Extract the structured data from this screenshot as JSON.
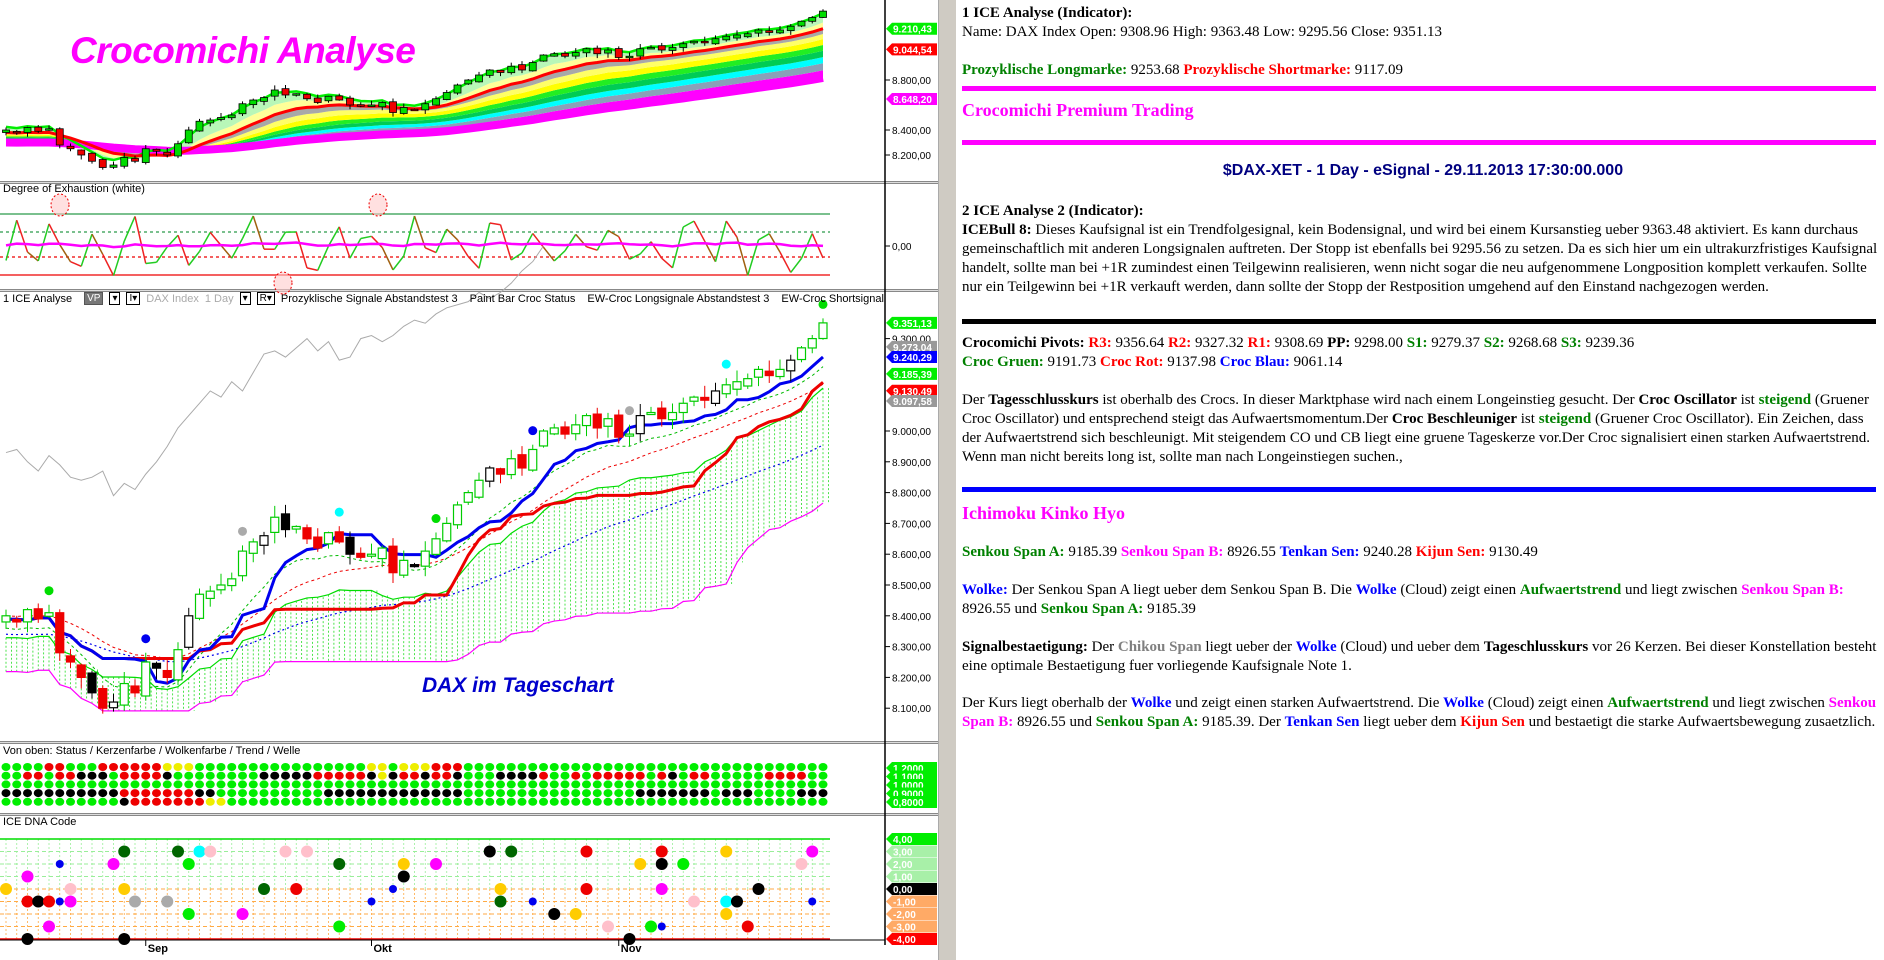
{
  "chart": {
    "top": {
      "title": "Crocomichi Analyse",
      "axis": [
        "8.800,00",
        "8.400,00",
        "8.200,00"
      ],
      "flags": [
        {
          "v": "9.210,43",
          "c": "#00ee00"
        },
        {
          "v": "9.044,54",
          "c": "#ff0000"
        },
        {
          "v": "8.648,20",
          "c": "#ff00ff"
        }
      ]
    },
    "doe": {
      "title": "Degree of Exhaustion (white)",
      "axis": [
        "0,00"
      ]
    },
    "main": {
      "header": {
        "name": "1 ICE Analyse",
        "vp": "VP",
        "i_box": "I▾",
        "symbol": "DAX Index",
        "interval": "1 Day",
        "r_box": "R▾",
        "dropdown": "▾",
        "studies": [
          "Prozyklische Signale Abstandstest 3",
          "Paint Bar Croc Status",
          "EW-Croc Longsignale Abstandstest 3",
          "EW-Croc Shortsignal"
        ]
      },
      "watermark": "DAX im Tageschart",
      "axis": [
        "9.300,00",
        "9.000,00",
        "8.900,00",
        "8.800,00",
        "8.700,00",
        "8.600,00",
        "8.500,00",
        "8.400,00",
        "8.300,00",
        "8.200,00",
        "8.100,00"
      ],
      "flags": [
        {
          "v": "9.351,13",
          "c": "#00ee00"
        },
        {
          "v": "9.273,04",
          "c": "#999999"
        },
        {
          "v": "9.240,29",
          "c": "#0000ff"
        },
        {
          "v": "9.185,39",
          "c": "#00ee00"
        },
        {
          "v": "9.130,49",
          "c": "#ff0000"
        },
        {
          "v": "9.097,58",
          "c": "#999999"
        }
      ]
    },
    "status": {
      "title": "Von oben: Status / Kerzenfarbe / Wolkenfarbe / Trend / Welle",
      "rows": [
        "ggggrrgggrrrrrryyyggggggggggggggggyygyyyrrrggggggggggggggggggggggggggggggggggg",
        "ggrrgrrkkkgrrrrkggggggggkkkkkrrrrrkykrrkrrkgggkkkkrggrgrrrrrgrkgrrgggggrrrrgg",
        "ggggggggggggggggggggggggggggggggggggggggggggggggggggggggggggggggggggggggggggg",
        "kkkkkkkkkkkrrrrrrrkkggggggggggkkkkkkkkkkkkkggggggggggggggggkkkkkkkgkkkggggkkkg",
        "gggggggggggkrrrrrrryygggggggggggggggggggggggggggggggggggggggggggggggggggggggg"
      ],
      "flags": [
        "1,2000",
        "1,1000",
        "1,0000",
        "0,9000",
        "0,8000"
      ]
    },
    "dna": {
      "title": "ICE DNA Code",
      "flags": [
        {
          "v": "4,00",
          "c": "#00ee00"
        },
        {
          "v": "3,00",
          "c": "#a8f0a8"
        },
        {
          "v": "2,00",
          "c": "#a8f0a8"
        },
        {
          "v": "1,00",
          "c": "#a8f0a8"
        },
        {
          "v": "0,00",
          "c": "#000000"
        },
        {
          "v": "-1,00",
          "c": "#ffaa66"
        },
        {
          "v": "-2,00",
          "c": "#ffaa66"
        },
        {
          "v": "-3,00",
          "c": "#ffaa66"
        },
        {
          "v": "-4,00",
          "c": "#ff0000"
        }
      ]
    },
    "months": [
      {
        "label": "Sep",
        "bar": 13
      },
      {
        "label": "Okt",
        "bar": 34
      },
      {
        "label": "Nov",
        "bar": 57
      }
    ],
    "closes": [
      8400,
      8380,
      8420,
      8390,
      8410,
      8280,
      8250,
      8200,
      8150,
      8100,
      8120,
      8180,
      8150,
      8250,
      8230,
      8200,
      8290,
      8400,
      8470,
      8480,
      8500,
      8520,
      8610,
      8640,
      8660,
      8720,
      8680,
      8690,
      8650,
      8620,
      8670,
      8640,
      8600,
      8590,
      8600,
      8620,
      8540,
      8580,
      8560,
      8610,
      8650,
      8700,
      8760,
      8800,
      8840,
      8880,
      8860,
      8910,
      8880,
      8940,
      9000,
      9010,
      8990,
      9020,
      9050,
      9010,
      9040,
      8980,
      8990,
      9050,
      9060,
      9040,
      9060,
      9090,
      9110,
      9100,
      9130,
      9150,
      9160,
      9170,
      9200,
      9180,
      9200,
      9230,
      9270,
      9300,
      9351
    ]
  },
  "text_panel": {
    "blocks": [
      {
        "type": "p",
        "segs": [
          {
            "t": "1 ICE Analyse (Indicator):",
            "s": "b"
          },
          {
            "br": true
          },
          {
            "t": "Name: DAX Index Open: 9308.96 High: 9363.48 Low: 9295.56 Close: 9351.13",
            "s": ""
          }
        ]
      },
      {
        "type": "p",
        "segs": [
          {
            "t": "Prozyklische Longmarke:",
            "s": "g"
          },
          {
            "t": " 9253.68 ",
            "s": ""
          },
          {
            "t": "Prozyklische Shortmarke:",
            "s": "r"
          },
          {
            "t": " 9117.09",
            "s": ""
          }
        ]
      },
      {
        "type": "hr",
        "color": "#ff00ff"
      },
      {
        "type": "h",
        "segs": [
          {
            "t": "Crocomichi Premium Trading",
            "s": ""
          }
        ]
      },
      {
        "type": "hr",
        "color": "#ff00ff"
      },
      {
        "type": "c",
        "segs": [
          {
            "t": "$DAX-XET - 1 Day - eSignal - 29.11.2013 17:30:00.000",
            "s": ""
          }
        ]
      },
      {
        "type": "p",
        "segs": [
          {
            "t": "2 ICE Analyse 2 (Indicator):",
            "s": "b"
          },
          {
            "br": true
          },
          {
            "t": "ICEBull 8:",
            "s": "b"
          },
          {
            "t": " Dieses Kaufsignal ist ein Trendfolgesignal, kein Bodensignal, und wird bei einem Kursanstieg ueber 9363.48 aktiviert. Es kann durchaus gemeinschaftlich mit anderen Longsignalen auftreten. Der Stopp ist ebenfalls bei 9295.56 zu setzen. Da es sich hier um ein ultrakurzfristiges Kaufsignal handelt, sollte man bei +1R zumindest einen Teilgewinn realisieren, wenn nicht sogar die neu aufgenommene Longposition komplett verkaufen. Sollte nur ein Teilgewinn bei +1R verkauft werden, dann sollte der Stopp der Restposition umgehend auf den Einstand nachgezogen werden.",
            "s": ""
          }
        ]
      },
      {
        "type": "hr",
        "color": "#000000"
      },
      {
        "type": "p",
        "segs": [
          {
            "t": "Crocomichi Pivots:",
            "s": "b"
          },
          {
            "t": " ",
            "s": ""
          },
          {
            "t": "R3:",
            "s": "r"
          },
          {
            "t": " 9356.64 ",
            "s": ""
          },
          {
            "t": "R2:",
            "s": "r"
          },
          {
            "t": " 9327.32 ",
            "s": ""
          },
          {
            "t": "R1:",
            "s": "r"
          },
          {
            "t": " 9308.69 ",
            "s": ""
          },
          {
            "t": "PP:",
            "s": "b"
          },
          {
            "t": " 9298.00 ",
            "s": ""
          },
          {
            "t": "S1:",
            "s": "g"
          },
          {
            "t": " 9279.37 ",
            "s": ""
          },
          {
            "t": "S2:",
            "s": "g"
          },
          {
            "t": " 9268.68 ",
            "s": ""
          },
          {
            "t": "S3:",
            "s": "g"
          },
          {
            "t": " 9239.36",
            "s": ""
          },
          {
            "br": true
          },
          {
            "t": "Croc Gruen:",
            "s": "g"
          },
          {
            "t": " 9191.73 ",
            "s": ""
          },
          {
            "t": "Croc Rot:",
            "s": "r"
          },
          {
            "t": " 9137.98 ",
            "s": ""
          },
          {
            "t": "Croc Blau:",
            "s": "u"
          },
          {
            "t": " 9061.14",
            "s": ""
          }
        ]
      },
      {
        "type": "p",
        "segs": [
          {
            "t": "Der ",
            "s": ""
          },
          {
            "t": "Tagesschlusskurs",
            "s": "b"
          },
          {
            "t": " ist oberhalb des Crocs. In dieser Marktphase wird nach einem Longeinstieg gesucht. Der ",
            "s": ""
          },
          {
            "t": "Croc Oscillator",
            "s": "b"
          },
          {
            "t": " ist ",
            "s": ""
          },
          {
            "t": "steigend",
            "s": "g"
          },
          {
            "t": " (Gruener Croc Oscillator) und entsprechend steigt das Aufwaertsmomentum.Der ",
            "s": ""
          },
          {
            "t": "Croc Beschleuniger",
            "s": "b"
          },
          {
            "t": " ist ",
            "s": ""
          },
          {
            "t": "steigend",
            "s": "g"
          },
          {
            "t": " (Gruener Croc Oscillator). Ein Zeichen, dass der Aufwaertstrend sich beschleunigt. Mit steigendem CO und CB liegt eine gruene Tageskerze vor.Der Croc signalisiert einen starken Aufwaertstrend. Wenn man nicht bereits long ist, sollte man nach Longeinstiegen suchen.,",
            "s": ""
          }
        ]
      },
      {
        "type": "hr",
        "color": "#0000ff"
      },
      {
        "type": "h",
        "segs": [
          {
            "t": "Ichimoku Kinko Hyo",
            "s": ""
          }
        ]
      },
      {
        "type": "p",
        "segs": [
          {
            "t": "Senkou Span A:",
            "s": "g"
          },
          {
            "t": " 9185.39 ",
            "s": ""
          },
          {
            "t": "Senkou Span B:",
            "s": "m"
          },
          {
            "t": " 8926.55 ",
            "s": ""
          },
          {
            "t": "Tenkan Sen:",
            "s": "u"
          },
          {
            "t": " 9240.28 ",
            "s": ""
          },
          {
            "t": "Kijun Sen:",
            "s": "r"
          },
          {
            "t": " 9130.49",
            "s": ""
          }
        ]
      },
      {
        "type": "p",
        "segs": [
          {
            "t": "Wolke:",
            "s": "u"
          },
          {
            "t": " Der Senkou Span A liegt ueber dem Senkou Span B. Die ",
            "s": ""
          },
          {
            "t": "Wolke",
            "s": "u"
          },
          {
            "t": " (Cloud) zeigt einen ",
            "s": ""
          },
          {
            "t": "Aufwaertstrend",
            "s": "g"
          },
          {
            "t": " und liegt zwischen ",
            "s": ""
          },
          {
            "t": "Senkou Span B:",
            "s": "m"
          },
          {
            "t": " 8926.55 und ",
            "s": ""
          },
          {
            "t": "Senkou Span A:",
            "s": "g"
          },
          {
            "t": " 9185.39",
            "s": ""
          }
        ]
      },
      {
        "type": "p",
        "segs": [
          {
            "t": "Signalbestaetigung:",
            "s": "b"
          },
          {
            "t": " Der ",
            "s": ""
          },
          {
            "t": "Chikou Span",
            "s": "y"
          },
          {
            "t": " liegt ueber der ",
            "s": ""
          },
          {
            "t": "Wolke",
            "s": "u"
          },
          {
            "t": " (Cloud) und ueber dem ",
            "s": ""
          },
          {
            "t": "Tageschlusskurs",
            "s": "b"
          },
          {
            "t": " vor 26 Kerzen. Bei dieser Konstellation besteht eine optimale Bestaetigung fuer vorliegende Kaufsignale Note 1.",
            "s": ""
          }
        ]
      },
      {
        "type": "p",
        "segs": [
          {
            "t": "Der Kurs liegt oberhalb der ",
            "s": ""
          },
          {
            "t": "Wolke",
            "s": "u"
          },
          {
            "t": " und zeigt einen starken Aufwaertstrend. Die ",
            "s": ""
          },
          {
            "t": "Wolke",
            "s": "u"
          },
          {
            "t": " (Cloud) zeigt einen ",
            "s": ""
          },
          {
            "t": "Aufwaertstrend",
            "s": "g"
          },
          {
            "t": " und liegt zwischen ",
            "s": ""
          },
          {
            "t": "Senkou Span B:",
            "s": "m"
          },
          {
            "t": " 8926.55 und ",
            "s": ""
          },
          {
            "t": "Senkou Span A:",
            "s": "g"
          },
          {
            "t": " 9185.39. Der ",
            "s": ""
          },
          {
            "t": "Tenkan Sen",
            "s": "u"
          },
          {
            "t": " liegt ueber dem ",
            "s": ""
          },
          {
            "t": "Kijun Sen",
            "s": "r"
          },
          {
            "t": " und bestaetigt die starke Aufwaertsbewegung zusaetzlich.",
            "s": ""
          }
        ]
      }
    ]
  }
}
